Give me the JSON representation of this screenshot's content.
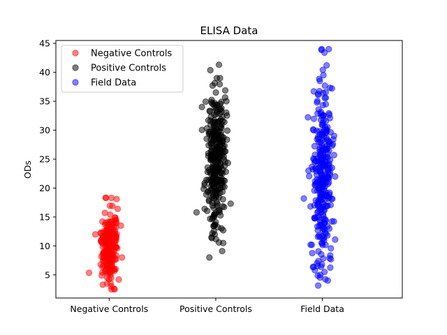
{
  "chart_data": {
    "type": "scatter",
    "title": "ELISA Data",
    "xlabel": "",
    "ylabel": "ODs",
    "ylim": [
      1,
      45.5
    ],
    "xlim": [
      0.5,
      3.75
    ],
    "yticks": [
      5,
      10,
      15,
      20,
      25,
      30,
      35,
      40,
      45
    ],
    "categories": [
      "Negative Controls",
      "Positive Controls",
      "Field Data"
    ],
    "category_x": [
      1,
      2,
      3
    ],
    "grid": false,
    "legend_position": "top-left",
    "alpha": 0.5,
    "series": [
      {
        "name": "Negative Controls",
        "color": "#ff0000",
        "x_center": 1,
        "count": 200,
        "mean": 10,
        "sd": 3,
        "x_jitter": 0.06,
        "points": [
          [
            0.87,
            12.0
          ],
          [
            0.97,
            18.3
          ],
          [
            1.02,
            18.3
          ],
          [
            1.07,
            18.1
          ],
          [
            1.08,
            16.4
          ],
          [
            1.03,
            16.9
          ],
          [
            0.96,
            15.7
          ],
          [
            1.11,
            13.5
          ],
          [
            1.12,
            8.0
          ],
          [
            0.93,
            4.9
          ],
          [
            0.94,
            3.3
          ],
          [
            0.98,
            3.5
          ],
          [
            1.02,
            3.0
          ],
          [
            1.09,
            4.2
          ],
          [
            1.05,
            5.7
          ]
        ]
      },
      {
        "name": "Positive Controls",
        "color": "#000000",
        "x_center": 2,
        "count": 300,
        "mean": 25,
        "sd": 5.5,
        "x_jitter": 0.06,
        "points": [
          [
            2.03,
            41.3
          ],
          [
            2.01,
            39.0
          ],
          [
            2.04,
            39.0
          ],
          [
            1.97,
            37.7
          ],
          [
            2.1,
            35.0
          ],
          [
            1.87,
            34.0
          ],
          [
            1.82,
            15.8
          ],
          [
            1.94,
            8.0
          ],
          [
            2.06,
            9.1
          ],
          [
            2.07,
            10.5
          ],
          [
            2.14,
            17.3
          ],
          [
            2.03,
            10.6
          ],
          [
            1.96,
            11.5
          ],
          [
            1.99,
            12.0
          ],
          [
            2.07,
            12.7
          ],
          [
            2.0,
            14.1
          ]
        ]
      },
      {
        "name": "Field Data",
        "color": "#0000ff",
        "x_center": 3,
        "count": 300,
        "mean": 22,
        "sd": 7.5,
        "x_jitter": 0.06,
        "points": [
          [
            3.02,
            43.4
          ],
          [
            3.04,
            41.2
          ],
          [
            3.01,
            39.5
          ],
          [
            3.09,
            37.2
          ],
          [
            2.92,
            36.7
          ],
          [
            2.87,
            23.0
          ],
          [
            2.89,
            10.2
          ],
          [
            3.12,
            11.1
          ],
          [
            3.11,
            25.7
          ],
          [
            3.12,
            22.0
          ],
          [
            2.93,
            5.8
          ],
          [
            2.98,
            5.0
          ],
          [
            3.02,
            5.5
          ],
          [
            3.08,
            7.7
          ],
          [
            2.95,
            7.0
          ]
        ]
      }
    ]
  }
}
